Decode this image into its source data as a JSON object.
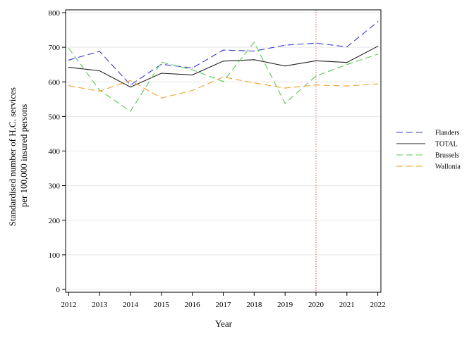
{
  "chart_data": {
    "type": "line",
    "xlabel": "Year",
    "ylabel_lines": [
      "Standardised number of H.C. services",
      "per 100,000 insured persons"
    ],
    "x": [
      2012,
      2013,
      2014,
      2015,
      2016,
      2017,
      2018,
      2019,
      2020,
      2021,
      2022
    ],
    "xlim": [
      2012,
      2022
    ],
    "ylim": [
      0,
      800
    ],
    "yticks": [
      0,
      100,
      200,
      300,
      400,
      500,
      600,
      700,
      800
    ],
    "grid": true,
    "legend_position": "right",
    "reference_line": {
      "x": 2020,
      "color": "#e03030",
      "style": "dotted"
    },
    "series": [
      {
        "name": "Flanders",
        "color": "#3a3ad6",
        "dash": "dashed",
        "values": [
          663,
          688,
          591,
          651,
          640,
          692,
          689,
          706,
          712,
          701,
          774
        ]
      },
      {
        "name": "TOTAL",
        "color": "#222222",
        "dash": "solid",
        "values": [
          642,
          632,
          585,
          625,
          620,
          660,
          664,
          646,
          661,
          656,
          703
        ]
      },
      {
        "name": "Brussels",
        "color": "#55cc55",
        "dash": "dashed",
        "values": [
          697,
          576,
          515,
          657,
          635,
          601,
          714,
          538,
          617,
          650,
          680
        ]
      },
      {
        "name": "Wallonia",
        "color": "#f0a030",
        "dash": "dashed",
        "values": [
          589,
          573,
          604,
          553,
          575,
          614,
          597,
          582,
          591,
          588,
          594
        ]
      }
    ]
  }
}
